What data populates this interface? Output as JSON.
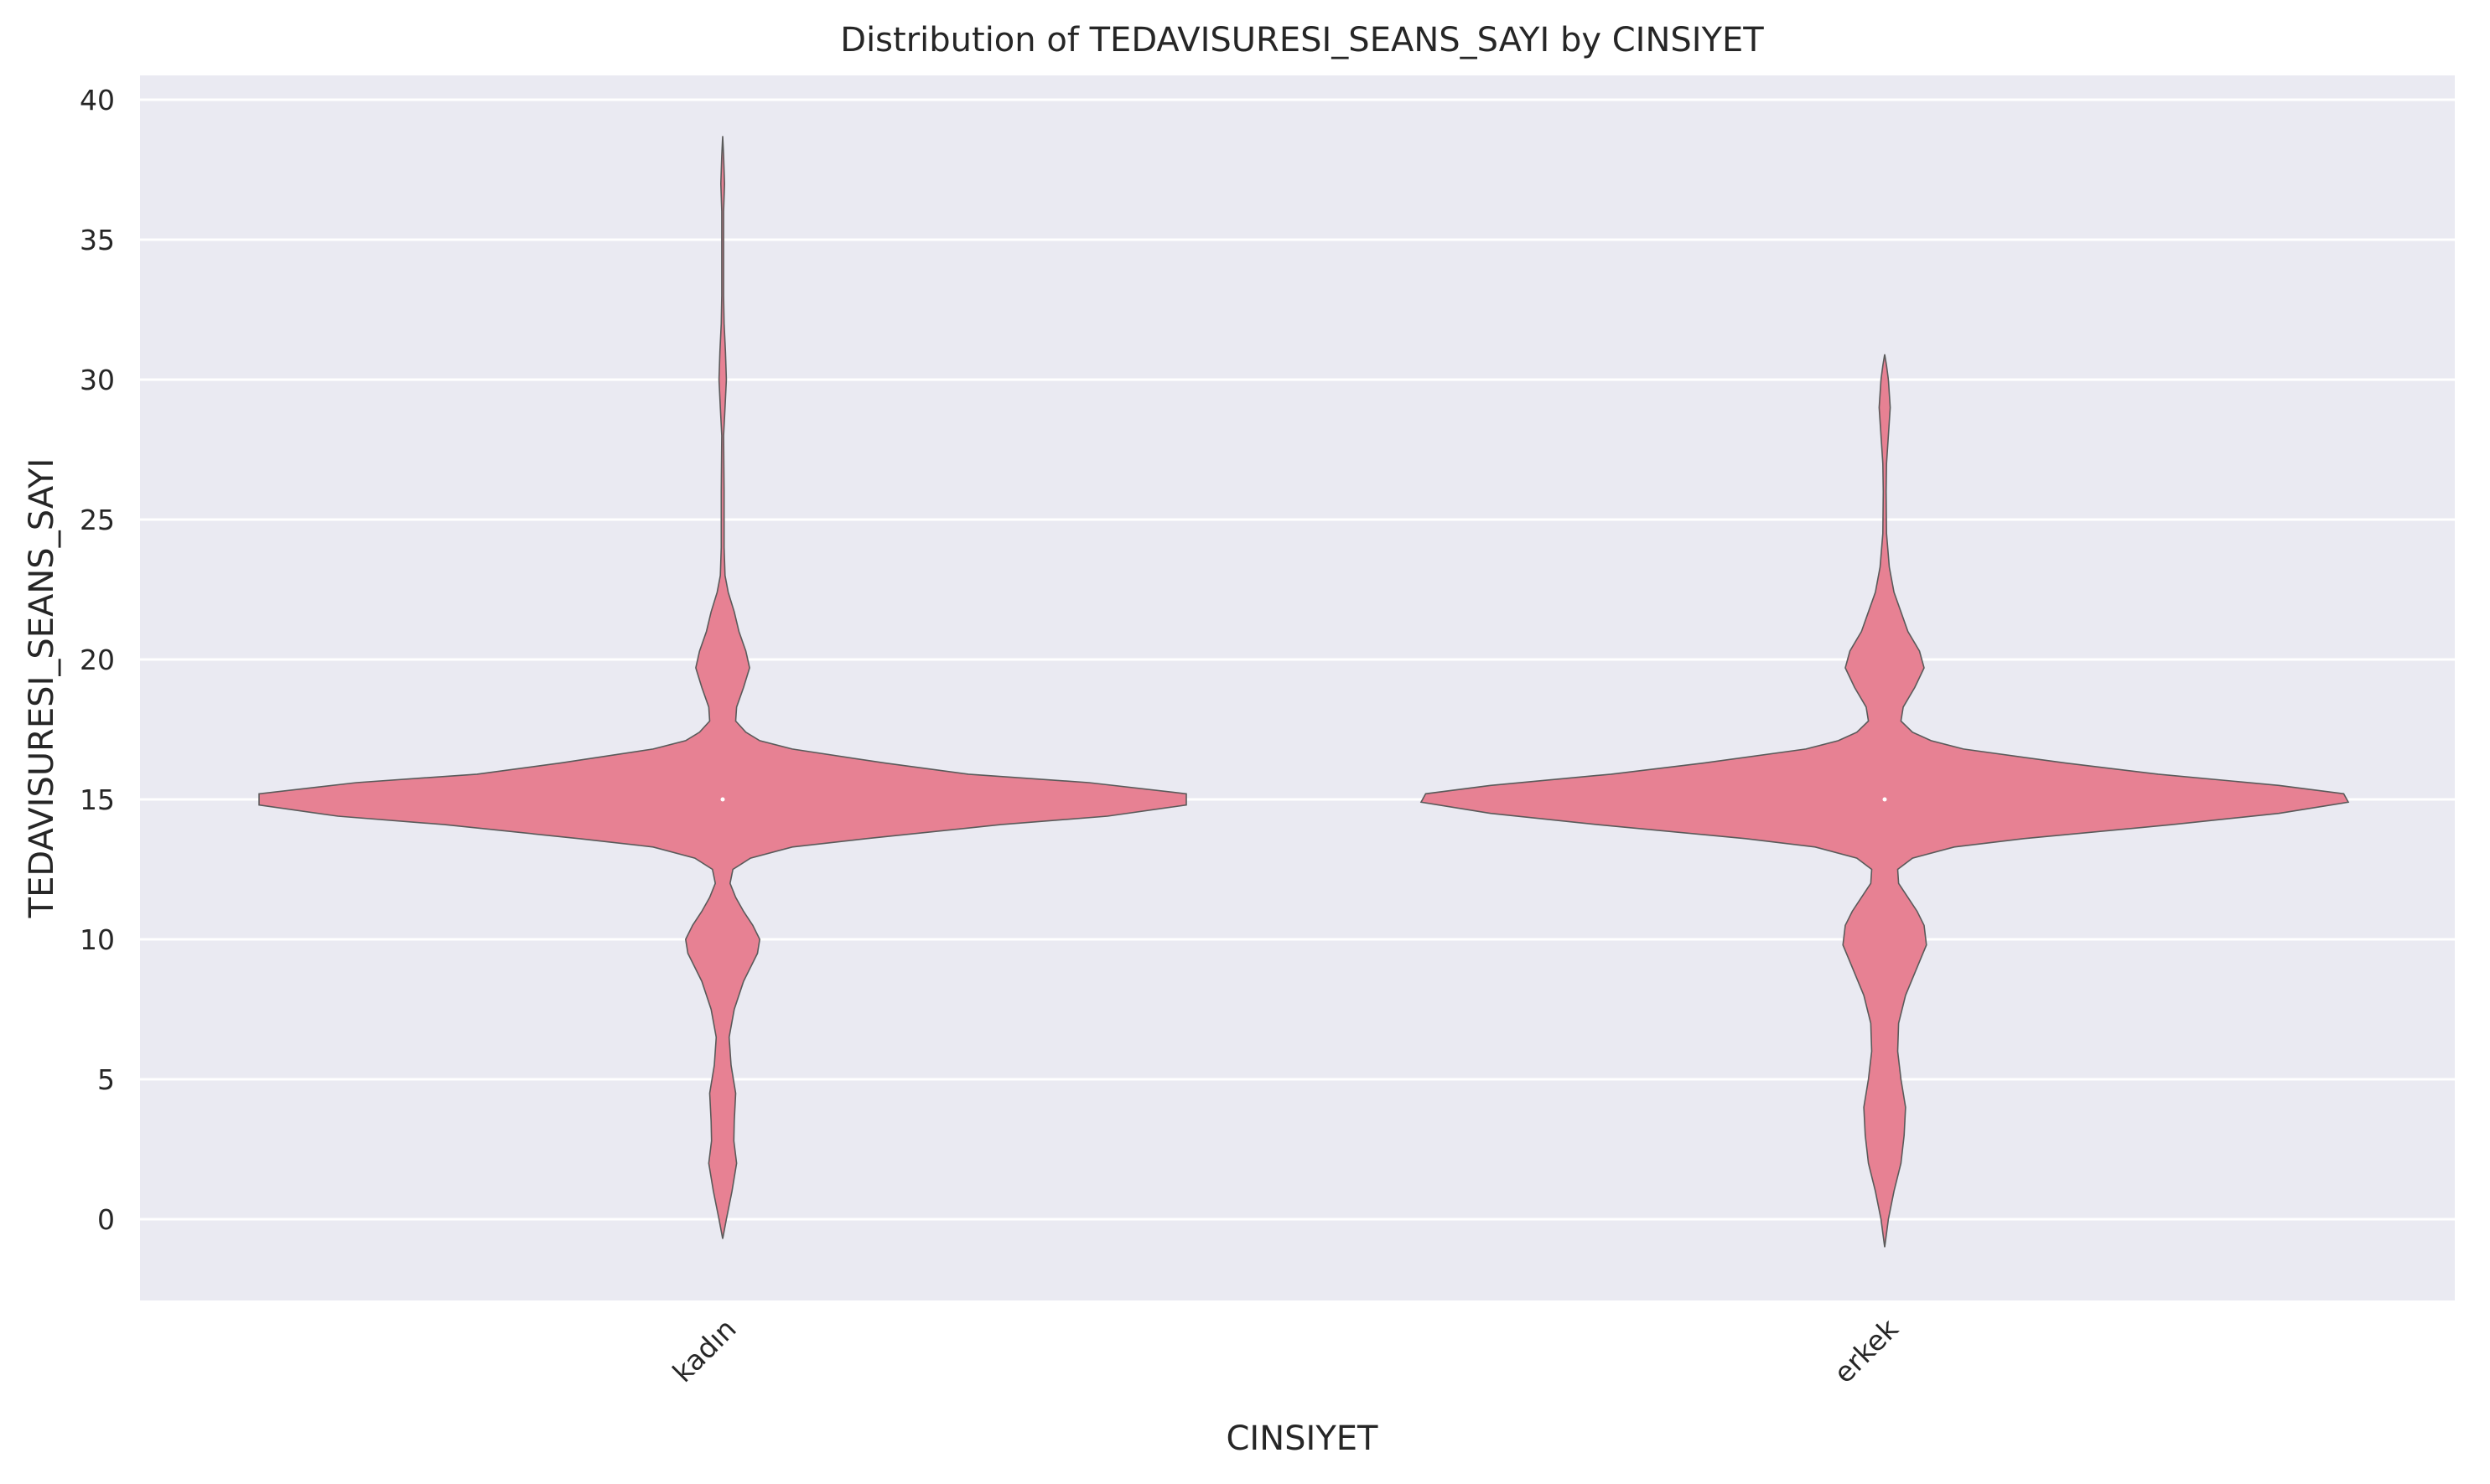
{
  "chart_data": {
    "type": "violin",
    "title": "Distribution of TEDAVISURESI_SEANS_SAYI by CINSIYET",
    "xlabel": "CINSIYET",
    "ylabel": "TEDAVISURESI_SEANS_SAYI",
    "categories": [
      "kadın",
      "erkek"
    ],
    "ylim": [
      -2.8,
      40.8
    ],
    "yticks": [
      0,
      5,
      10,
      15,
      20,
      25,
      30,
      35,
      40
    ],
    "grid": true,
    "colors": {
      "violin_fill": "#e78193",
      "violin_edge": "#5a5a5a",
      "plot_bg": "#eaeaf2",
      "grid": "#ffffff"
    },
    "series": [
      {
        "category": "kadın",
        "min": -0.7,
        "max": 38.7,
        "median": 15,
        "density_profile": [
          [
            -0.7,
            0.0
          ],
          [
            0,
            0.008
          ],
          [
            1,
            0.02
          ],
          [
            2,
            0.03
          ],
          [
            2.8,
            0.024
          ],
          [
            3.5,
            0.025
          ],
          [
            4.5,
            0.028
          ],
          [
            5.5,
            0.018
          ],
          [
            6.5,
            0.014
          ],
          [
            7.5,
            0.025
          ],
          [
            8.5,
            0.045
          ],
          [
            9.5,
            0.075
          ],
          [
            10,
            0.08
          ],
          [
            10.5,
            0.065
          ],
          [
            11,
            0.045
          ],
          [
            11.5,
            0.028
          ],
          [
            12,
            0.016
          ],
          [
            12.5,
            0.022
          ],
          [
            12.9,
            0.06
          ],
          [
            13.3,
            0.15
          ],
          [
            13.6,
            0.31
          ],
          [
            14.1,
            0.6
          ],
          [
            14.4,
            0.83
          ],
          [
            14.8,
            1.0
          ],
          [
            15.2,
            1.0
          ],
          [
            15.6,
            0.79
          ],
          [
            15.9,
            0.53
          ],
          [
            16.3,
            0.35
          ],
          [
            16.8,
            0.15
          ],
          [
            17.1,
            0.08
          ],
          [
            17.4,
            0.05
          ],
          [
            17.8,
            0.028
          ],
          [
            18.3,
            0.03
          ],
          [
            19,
            0.045
          ],
          [
            19.7,
            0.058
          ],
          [
            20.3,
            0.05
          ],
          [
            21,
            0.035
          ],
          [
            21.7,
            0.025
          ],
          [
            22.4,
            0.012
          ],
          [
            23,
            0.005
          ],
          [
            24,
            0.003
          ],
          [
            26,
            0.003
          ],
          [
            28,
            0.002
          ],
          [
            29,
            0.005
          ],
          [
            30,
            0.008
          ],
          [
            31,
            0.006
          ],
          [
            32,
            0.003
          ],
          [
            33,
            0.002
          ],
          [
            35,
            0.002
          ],
          [
            36,
            0.002
          ],
          [
            37,
            0.004
          ],
          [
            38,
            0.002
          ],
          [
            38.7,
            0.0
          ]
        ]
      },
      {
        "category": "erkek",
        "min": -1.0,
        "max": 30.9,
        "median": 15,
        "density_profile": [
          [
            -1.0,
            0.0
          ],
          [
            0,
            0.008
          ],
          [
            1,
            0.02
          ],
          [
            2,
            0.035
          ],
          [
            3,
            0.042
          ],
          [
            4,
            0.045
          ],
          [
            5,
            0.035
          ],
          [
            6,
            0.028
          ],
          [
            7,
            0.03
          ],
          [
            8,
            0.045
          ],
          [
            9,
            0.07
          ],
          [
            9.8,
            0.09
          ],
          [
            10.5,
            0.085
          ],
          [
            11,
            0.07
          ],
          [
            11.5,
            0.05
          ],
          [
            12,
            0.03
          ],
          [
            12.5,
            0.028
          ],
          [
            12.9,
            0.06
          ],
          [
            13.3,
            0.15
          ],
          [
            13.6,
            0.3
          ],
          [
            14.1,
            0.62
          ],
          [
            14.5,
            0.85
          ],
          [
            14.9,
            1.0
          ],
          [
            15.2,
            0.99
          ],
          [
            15.5,
            0.85
          ],
          [
            15.9,
            0.59
          ],
          [
            16.3,
            0.39
          ],
          [
            16.8,
            0.17
          ],
          [
            17.1,
            0.1
          ],
          [
            17.4,
            0.06
          ],
          [
            17.8,
            0.035
          ],
          [
            18.3,
            0.04
          ],
          [
            19,
            0.065
          ],
          [
            19.7,
            0.085
          ],
          [
            20.3,
            0.075
          ],
          [
            21,
            0.05
          ],
          [
            21.7,
            0.035
          ],
          [
            22.4,
            0.02
          ],
          [
            23.3,
            0.01
          ],
          [
            24.5,
            0.004
          ],
          [
            26,
            0.003
          ],
          [
            27,
            0.004
          ],
          [
            28,
            0.008
          ],
          [
            29,
            0.012
          ],
          [
            30,
            0.008
          ],
          [
            30.5,
            0.004
          ],
          [
            30.9,
            0.0
          ]
        ]
      }
    ]
  }
}
